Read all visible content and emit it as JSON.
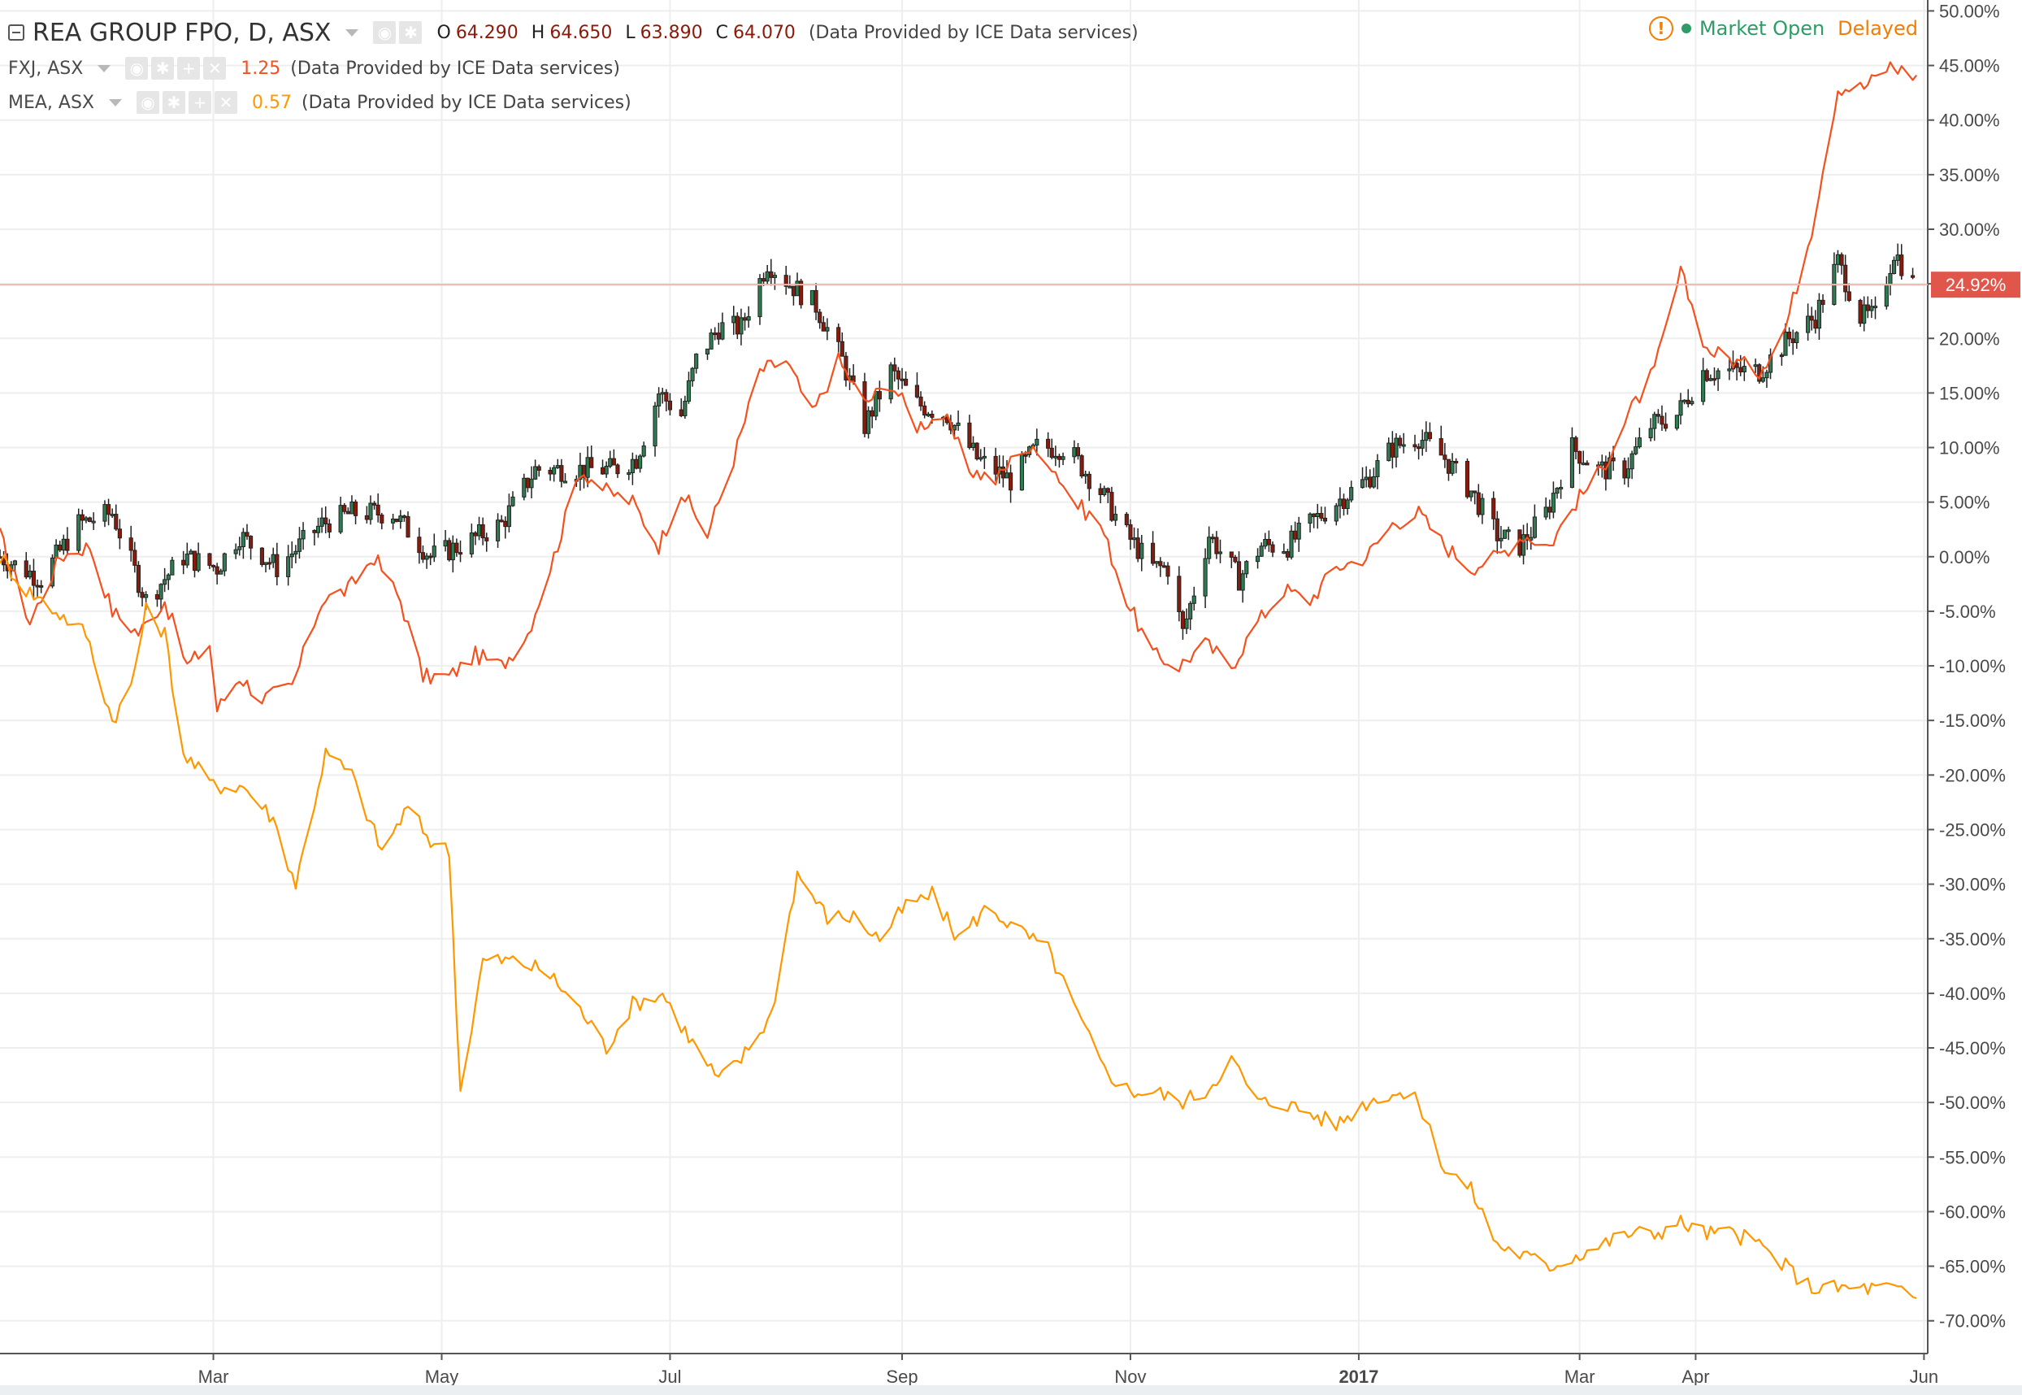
{
  "legend": {
    "main": {
      "symbol": "REA GROUP FPO, D, ASX",
      "open_label": "O",
      "open": "64.290",
      "high_label": "H",
      "high": "64.650",
      "low_label": "L",
      "low": "63.890",
      "close_label": "C",
      "close": "64.070",
      "source": "(Data Provided by ICE Data services)"
    },
    "compare": [
      {
        "symbol": "FXJ, ASX",
        "value": "1.25",
        "color": "#f4511e",
        "source": "(Data Provided by ICE Data services)"
      },
      {
        "symbol": "MEA, ASX",
        "value": "0.57",
        "color": "#ff9800",
        "source": "(Data Provided by ICE Data services)"
      }
    ]
  },
  "status": {
    "market": "Market Open",
    "delay": "Delayed"
  },
  "colors": {
    "up": "#2e7d52",
    "down": "#8b1a0a",
    "fxj": "#f4511e",
    "mea": "#ff9800",
    "price_label_bg": "#e0564a",
    "grid": "#eeeeee"
  },
  "price_label": "24.92%",
  "chart_data": {
    "type": "line",
    "title": "REA GROUP FPO, D, ASX",
    "y_unit": "percent change",
    "ylim": [
      -73,
      51
    ],
    "xlim": [
      "2016-01-04",
      "2017-06-02"
    ],
    "y_ticks": [
      50,
      45,
      40,
      35,
      30,
      25,
      20,
      15,
      10,
      5,
      0,
      -5,
      -10,
      -15,
      -20,
      -25,
      -30,
      -35,
      -40,
      -45,
      -50,
      -55,
      -60,
      -65,
      -70
    ],
    "x_ticks": [
      {
        "date": "2016-03-01",
        "label": "Mar"
      },
      {
        "date": "2016-05-01",
        "label": "May"
      },
      {
        "date": "2016-07-01",
        "label": "Jul"
      },
      {
        "date": "2016-09-01",
        "label": "Sep"
      },
      {
        "date": "2016-11-01",
        "label": "Nov"
      },
      {
        "date": "2017-01-01",
        "label": "2017"
      },
      {
        "date": "2017-03-01",
        "label": "Mar"
      },
      {
        "date": "2017-04-01",
        "label": "Apr"
      },
      {
        "date": "2017-06-01",
        "label": "Jun"
      }
    ],
    "current_value": 24.92,
    "grid": true,
    "main_series": {
      "name": "REA GROUP FPO, D, ASX",
      "style": "candlestick",
      "points": [
        [
          "2016-01-04",
          0
        ],
        [
          "2016-01-15",
          -2
        ],
        [
          "2016-01-25",
          3
        ],
        [
          "2016-02-03",
          4
        ],
        [
          "2016-02-12",
          -4
        ],
        [
          "2016-02-22",
          0
        ],
        [
          "2016-03-02",
          -1
        ],
        [
          "2016-03-08",
          2
        ],
        [
          "2016-03-18",
          -1
        ],
        [
          "2016-03-30",
          3
        ],
        [
          "2016-04-07",
          4
        ],
        [
          "2016-04-18",
          4
        ],
        [
          "2016-04-28",
          0
        ],
        [
          "2016-05-06",
          1
        ],
        [
          "2016-05-17",
          3
        ],
        [
          "2016-05-26",
          8
        ],
        [
          "2016-06-06",
          8
        ],
        [
          "2016-06-16",
          8
        ],
        [
          "2016-06-22",
          9
        ],
        [
          "2016-06-28",
          15
        ],
        [
          "2016-07-04",
          13
        ],
        [
          "2016-07-08",
          18
        ],
        [
          "2016-07-14",
          21
        ],
        [
          "2016-07-20",
          21
        ],
        [
          "2016-07-27",
          27
        ],
        [
          "2016-08-02",
          25
        ],
        [
          "2016-08-09",
          23
        ],
        [
          "2016-08-16",
          18
        ],
        [
          "2016-08-22",
          12
        ],
        [
          "2016-08-29",
          17
        ],
        [
          "2016-09-05",
          14
        ],
        [
          "2016-09-13",
          13
        ],
        [
          "2016-09-21",
          9
        ],
        [
          "2016-09-30",
          7
        ],
        [
          "2016-10-07",
          10
        ],
        [
          "2016-10-15",
          10
        ],
        [
          "2016-10-24",
          6
        ],
        [
          "2016-10-31",
          2
        ],
        [
          "2016-11-07",
          -1
        ],
        [
          "2016-11-11",
          -1
        ],
        [
          "2016-11-15",
          -7
        ],
        [
          "2016-11-22",
          2
        ],
        [
          "2016-11-30",
          -2
        ],
        [
          "2016-12-06",
          1
        ],
        [
          "2016-12-13",
          1
        ],
        [
          "2016-12-19",
          3
        ],
        [
          "2016-12-26",
          5
        ],
        [
          "2017-01-03",
          7
        ],
        [
          "2017-01-10",
          10
        ],
        [
          "2017-01-17",
          11
        ],
        [
          "2017-01-24",
          9
        ],
        [
          "2017-01-31",
          6
        ],
        [
          "2017-02-07",
          2
        ],
        [
          "2017-02-13",
          1
        ],
        [
          "2017-02-20",
          4
        ],
        [
          "2017-02-27",
          10
        ],
        [
          "2017-03-06",
          8
        ],
        [
          "2017-03-13",
          8
        ],
        [
          "2017-03-20",
          12
        ],
        [
          "2017-03-27",
          13
        ],
        [
          "2017-04-03",
          17
        ],
        [
          "2017-04-10",
          17
        ],
        [
          "2017-04-18",
          17
        ],
        [
          "2017-04-26",
          20
        ],
        [
          "2017-05-03",
          22
        ],
        [
          "2017-05-09",
          27
        ],
        [
          "2017-05-15",
          22
        ],
        [
          "2017-05-19",
          22
        ],
        [
          "2017-05-24",
          28
        ],
        [
          "2017-05-29",
          25
        ]
      ]
    },
    "series": [
      {
        "name": "FXJ, ASX",
        "color": "#f4511e",
        "points": [
          [
            "2016-01-04",
            2
          ],
          [
            "2016-01-12",
            -6
          ],
          [
            "2016-01-20",
            0
          ],
          [
            "2016-01-28",
            1
          ],
          [
            "2016-02-03",
            -5
          ],
          [
            "2016-02-10",
            -7
          ],
          [
            "2016-02-17",
            -4
          ],
          [
            "2016-02-23",
            -10
          ],
          [
            "2016-02-29",
            -8
          ],
          [
            "2016-03-02",
            -14
          ],
          [
            "2016-03-08",
            -11
          ],
          [
            "2016-03-14",
            -13
          ],
          [
            "2016-03-22",
            -12
          ],
          [
            "2016-03-30",
            -4
          ],
          [
            "2016-04-06",
            -3
          ],
          [
            "2016-04-13",
            0
          ],
          [
            "2016-04-20",
            -4
          ],
          [
            "2016-04-26",
            -11
          ],
          [
            "2016-05-03",
            -11
          ],
          [
            "2016-05-10",
            -9
          ],
          [
            "2016-05-17",
            -10
          ],
          [
            "2016-05-24",
            -7
          ],
          [
            "2016-05-31",
            0
          ],
          [
            "2016-06-07",
            8
          ],
          [
            "2016-06-14",
            6
          ],
          [
            "2016-06-21",
            5
          ],
          [
            "2016-06-28",
            1
          ],
          [
            "2016-07-04",
            6
          ],
          [
            "2016-07-11",
            2
          ],
          [
            "2016-07-18",
            9
          ],
          [
            "2016-07-25",
            17
          ],
          [
            "2016-08-01",
            18
          ],
          [
            "2016-08-08",
            13
          ],
          [
            "2016-08-15",
            18
          ],
          [
            "2016-08-22",
            14
          ],
          [
            "2016-08-29",
            16
          ],
          [
            "2016-09-05",
            12
          ],
          [
            "2016-09-12",
            13
          ],
          [
            "2016-09-19",
            8
          ],
          [
            "2016-09-26",
            7
          ],
          [
            "2016-10-03",
            10
          ],
          [
            "2016-10-10",
            9
          ],
          [
            "2016-10-17",
            5
          ],
          [
            "2016-10-24",
            3
          ],
          [
            "2016-10-31",
            -4
          ],
          [
            "2016-11-07",
            -9
          ],
          [
            "2016-11-14",
            -10
          ],
          [
            "2016-11-21",
            -8
          ],
          [
            "2016-11-28",
            -10
          ],
          [
            "2016-12-05",
            -6
          ],
          [
            "2016-12-12",
            -3
          ],
          [
            "2016-12-19",
            -4
          ],
          [
            "2016-12-26",
            -1
          ],
          [
            "2017-01-03",
            0
          ],
          [
            "2017-01-10",
            3
          ],
          [
            "2017-01-17",
            4
          ],
          [
            "2017-01-24",
            1
          ],
          [
            "2017-01-31",
            -1
          ],
          [
            "2017-02-07",
            0
          ],
          [
            "2017-02-14",
            2
          ],
          [
            "2017-02-21",
            1
          ],
          [
            "2017-02-28",
            5
          ],
          [
            "2017-03-07",
            8
          ],
          [
            "2017-03-14",
            13
          ],
          [
            "2017-03-21",
            17
          ],
          [
            "2017-03-28",
            26
          ],
          [
            "2017-04-04",
            19
          ],
          [
            "2017-04-11",
            18
          ],
          [
            "2017-04-18",
            17
          ],
          [
            "2017-04-25",
            21
          ],
          [
            "2017-05-02",
            30
          ],
          [
            "2017-05-09",
            43
          ],
          [
            "2017-05-16",
            43
          ],
          [
            "2017-05-23",
            45
          ],
          [
            "2017-05-30",
            44
          ]
        ]
      },
      {
        "name": "MEA, ASX",
        "color": "#ff9800",
        "points": [
          [
            "2016-01-04",
            0
          ],
          [
            "2016-01-11",
            -3
          ],
          [
            "2016-01-19",
            -5
          ],
          [
            "2016-01-27",
            -7
          ],
          [
            "2016-02-03",
            -15
          ],
          [
            "2016-02-08",
            -12
          ],
          [
            "2016-02-12",
            -5
          ],
          [
            "2016-02-17",
            -7
          ],
          [
            "2016-02-22",
            -18
          ],
          [
            "2016-03-01",
            -21
          ],
          [
            "2016-03-09",
            -21
          ],
          [
            "2016-03-17",
            -24
          ],
          [
            "2016-03-23",
            -30
          ],
          [
            "2016-03-31",
            -18
          ],
          [
            "2016-04-07",
            -20
          ],
          [
            "2016-04-15",
            -27
          ],
          [
            "2016-04-22",
            -23
          ],
          [
            "2016-04-28",
            -26
          ],
          [
            "2016-05-03",
            -27
          ],
          [
            "2016-05-06",
            -49
          ],
          [
            "2016-05-12",
            -37
          ],
          [
            "2016-05-20",
            -37
          ],
          [
            "2016-05-29",
            -38
          ],
          [
            "2016-06-06",
            -41
          ],
          [
            "2016-06-14",
            -45
          ],
          [
            "2016-06-21",
            -41
          ],
          [
            "2016-06-29",
            -40
          ],
          [
            "2016-07-06",
            -44
          ],
          [
            "2016-07-14",
            -48
          ],
          [
            "2016-07-20",
            -46
          ],
          [
            "2016-07-28",
            -42
          ],
          [
            "2016-08-04",
            -29
          ],
          [
            "2016-08-12",
            -33
          ],
          [
            "2016-08-19",
            -33
          ],
          [
            "2016-08-26",
            -35
          ],
          [
            "2016-09-02",
            -32
          ],
          [
            "2016-09-09",
            -31
          ],
          [
            "2016-09-16",
            -35
          ],
          [
            "2016-09-24",
            -32
          ],
          [
            "2016-10-01",
            -34
          ],
          [
            "2016-10-10",
            -36
          ],
          [
            "2016-10-18",
            -42
          ],
          [
            "2016-10-25",
            -47
          ],
          [
            "2016-11-01",
            -49
          ],
          [
            "2016-11-08",
            -49
          ],
          [
            "2016-11-14",
            -50
          ],
          [
            "2016-11-21",
            -49
          ],
          [
            "2016-11-28",
            -46
          ],
          [
            "2016-12-05",
            -50
          ],
          [
            "2016-12-12",
            -50
          ],
          [
            "2016-12-19",
            -51
          ],
          [
            "2016-12-26",
            -52
          ],
          [
            "2017-01-03",
            -50
          ],
          [
            "2017-01-10",
            -49
          ],
          [
            "2017-01-17",
            -50
          ],
          [
            "2017-01-24",
            -56
          ],
          [
            "2017-01-31",
            -58
          ],
          [
            "2017-02-07",
            -63
          ],
          [
            "2017-02-14",
            -64
          ],
          [
            "2017-02-21",
            -65
          ],
          [
            "2017-02-28",
            -64
          ],
          [
            "2017-03-07",
            -63
          ],
          [
            "2017-03-14",
            -62
          ],
          [
            "2017-03-21",
            -62
          ],
          [
            "2017-03-28",
            -61
          ],
          [
            "2017-04-04",
            -62
          ],
          [
            "2017-04-11",
            -62
          ],
          [
            "2017-04-18",
            -63
          ],
          [
            "2017-04-25",
            -65
          ],
          [
            "2017-05-02",
            -67
          ],
          [
            "2017-05-09",
            -67
          ],
          [
            "2017-05-16",
            -67
          ],
          [
            "2017-05-23",
            -67
          ],
          [
            "2017-05-30",
            -68
          ]
        ]
      }
    ]
  }
}
